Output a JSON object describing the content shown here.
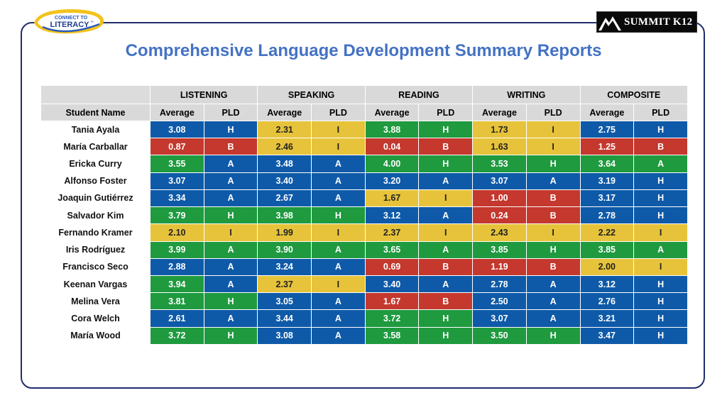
{
  "title": "Comprehensive Language Development Summary Reports",
  "logo_left": {
    "line1": "CONNECT TO",
    "line2": "LITERACY",
    "tm": "™"
  },
  "logo_right": {
    "text": "SUMMIT K12"
  },
  "colors": {
    "H": "#0f5aa8",
    "A": "#1f9a3f",
    "I": "#e6c33a",
    "B": "#c4382e"
  },
  "table": {
    "groups": [
      "LISTENING",
      "SPEAKING",
      "READING",
      "WRITING",
      "COMPOSITE"
    ],
    "name_header": "Student Name",
    "sub_headers": [
      "Average",
      "PLD"
    ],
    "rows": [
      {
        "name": "Tania Ayala",
        "cells": [
          [
            "3.08",
            "H"
          ],
          [
            "2.31",
            "I"
          ],
          [
            "3.88",
            "H"
          ],
          [
            "1.73",
            "I"
          ],
          [
            "2.75",
            "H"
          ]
        ],
        "colors": [
          [
            "blue",
            "blue"
          ],
          [
            "yellow",
            "yellow"
          ],
          [
            "green",
            "green"
          ],
          [
            "yellow",
            "yellow"
          ],
          [
            "blue",
            "blue"
          ]
        ]
      },
      {
        "name": "María Carballar",
        "cells": [
          [
            "0.87",
            "B"
          ],
          [
            "2.46",
            "I"
          ],
          [
            "0.04",
            "B"
          ],
          [
            "1.63",
            "I"
          ],
          [
            "1.25",
            "B"
          ]
        ],
        "colors": [
          [
            "red",
            "red"
          ],
          [
            "yellow",
            "yellow"
          ],
          [
            "red",
            "red"
          ],
          [
            "yellow",
            "yellow"
          ],
          [
            "red",
            "red"
          ]
        ]
      },
      {
        "name": "Ericka Curry",
        "cells": [
          [
            "3.55",
            "A"
          ],
          [
            "3.48",
            "A"
          ],
          [
            "4.00",
            "H"
          ],
          [
            "3.53",
            "H"
          ],
          [
            "3.64",
            "A"
          ]
        ],
        "colors": [
          [
            "green",
            "blue"
          ],
          [
            "blue",
            "blue"
          ],
          [
            "green",
            "green"
          ],
          [
            "green",
            "green"
          ],
          [
            "green",
            "green"
          ]
        ]
      },
      {
        "name": "Alfonso Foster",
        "cells": [
          [
            "3.07",
            "A"
          ],
          [
            "3.40",
            "A"
          ],
          [
            "3.20",
            "A"
          ],
          [
            "3.07",
            "A"
          ],
          [
            "3.19",
            "H"
          ]
        ],
        "colors": [
          [
            "blue",
            "blue"
          ],
          [
            "blue",
            "blue"
          ],
          [
            "blue",
            "blue"
          ],
          [
            "blue",
            "blue"
          ],
          [
            "blue",
            "blue"
          ]
        ]
      },
      {
        "name": "Joaquin Gutiérrez",
        "cells": [
          [
            "3.34",
            "A"
          ],
          [
            "2.67",
            "A"
          ],
          [
            "1.67",
            "I"
          ],
          [
            "1.00",
            "B"
          ],
          [
            "3.17",
            "H"
          ]
        ],
        "colors": [
          [
            "blue",
            "blue"
          ],
          [
            "blue",
            "blue"
          ],
          [
            "yellow",
            "yellow"
          ],
          [
            "red",
            "red"
          ],
          [
            "blue",
            "blue"
          ]
        ]
      },
      {
        "name": "Salvador Kim",
        "cells": [
          [
            "3.79",
            "H"
          ],
          [
            "3.98",
            "H"
          ],
          [
            "3.12",
            "A"
          ],
          [
            "0.24",
            "B"
          ],
          [
            "2.78",
            "H"
          ]
        ],
        "colors": [
          [
            "green",
            "green"
          ],
          [
            "green",
            "green"
          ],
          [
            "blue",
            "blue"
          ],
          [
            "red",
            "red"
          ],
          [
            "blue",
            "blue"
          ]
        ]
      },
      {
        "name": "Fernando Kramer",
        "cells": [
          [
            "2.10",
            "I"
          ],
          [
            "1.99",
            "I"
          ],
          [
            "2.37",
            "I"
          ],
          [
            "2.43",
            "I"
          ],
          [
            "2.22",
            "I"
          ]
        ],
        "colors": [
          [
            "yellow",
            "yellow"
          ],
          [
            "yellow",
            "yellow"
          ],
          [
            "yellow",
            "yellow"
          ],
          [
            "yellow",
            "yellow"
          ],
          [
            "yellow",
            "yellow"
          ]
        ]
      },
      {
        "name": "Iris Rodríguez",
        "cells": [
          [
            "3.99",
            "A"
          ],
          [
            "3.90",
            "A"
          ],
          [
            "3.65",
            "A"
          ],
          [
            "3.85",
            "H"
          ],
          [
            "3.85",
            "A"
          ]
        ],
        "colors": [
          [
            "green",
            "green"
          ],
          [
            "green",
            "green"
          ],
          [
            "green",
            "green"
          ],
          [
            "green",
            "green"
          ],
          [
            "green",
            "green"
          ]
        ]
      },
      {
        "name": "Francisco Seco",
        "cells": [
          [
            "2.88",
            "A"
          ],
          [
            "3.24",
            "A"
          ],
          [
            "0.69",
            "B"
          ],
          [
            "1.19",
            "B"
          ],
          [
            "2.00",
            "I"
          ]
        ],
        "colors": [
          [
            "blue",
            "blue"
          ],
          [
            "blue",
            "blue"
          ],
          [
            "red",
            "red"
          ],
          [
            "red",
            "red"
          ],
          [
            "yellow",
            "yellow"
          ]
        ]
      },
      {
        "name": "Keenan Vargas",
        "cells": [
          [
            "3.94",
            "A"
          ],
          [
            "2.37",
            "I"
          ],
          [
            "3.40",
            "A"
          ],
          [
            "2.78",
            "A"
          ],
          [
            "3.12",
            "H"
          ]
        ],
        "colors": [
          [
            "green",
            "blue"
          ],
          [
            "yellow",
            "yellow"
          ],
          [
            "blue",
            "blue"
          ],
          [
            "blue",
            "blue"
          ],
          [
            "blue",
            "blue"
          ]
        ]
      },
      {
        "name": "Melina Vera",
        "cells": [
          [
            "3.81",
            "H"
          ],
          [
            "3.05",
            "A"
          ],
          [
            "1.67",
            "B"
          ],
          [
            "2.50",
            "A"
          ],
          [
            "2.76",
            "H"
          ]
        ],
        "colors": [
          [
            "green",
            "green"
          ],
          [
            "blue",
            "blue"
          ],
          [
            "red",
            "red"
          ],
          [
            "blue",
            "blue"
          ],
          [
            "blue",
            "blue"
          ]
        ]
      },
      {
        "name": "Cora Welch",
        "cells": [
          [
            "2.61",
            "A"
          ],
          [
            "3.44",
            "A"
          ],
          [
            "3.72",
            "H"
          ],
          [
            "3.07",
            "A"
          ],
          [
            "3.21",
            "H"
          ]
        ],
        "colors": [
          [
            "blue",
            "blue"
          ],
          [
            "blue",
            "blue"
          ],
          [
            "green",
            "green"
          ],
          [
            "blue",
            "blue"
          ],
          [
            "blue",
            "blue"
          ]
        ]
      },
      {
        "name": "María Wood",
        "cells": [
          [
            "3.72",
            "H"
          ],
          [
            "3.08",
            "A"
          ],
          [
            "3.58",
            "H"
          ],
          [
            "3.50",
            "H"
          ],
          [
            "3.47",
            "H"
          ]
        ],
        "colors": [
          [
            "green",
            "green"
          ],
          [
            "blue",
            "blue"
          ],
          [
            "green",
            "green"
          ],
          [
            "green",
            "green"
          ],
          [
            "blue",
            "blue"
          ]
        ]
      }
    ]
  }
}
